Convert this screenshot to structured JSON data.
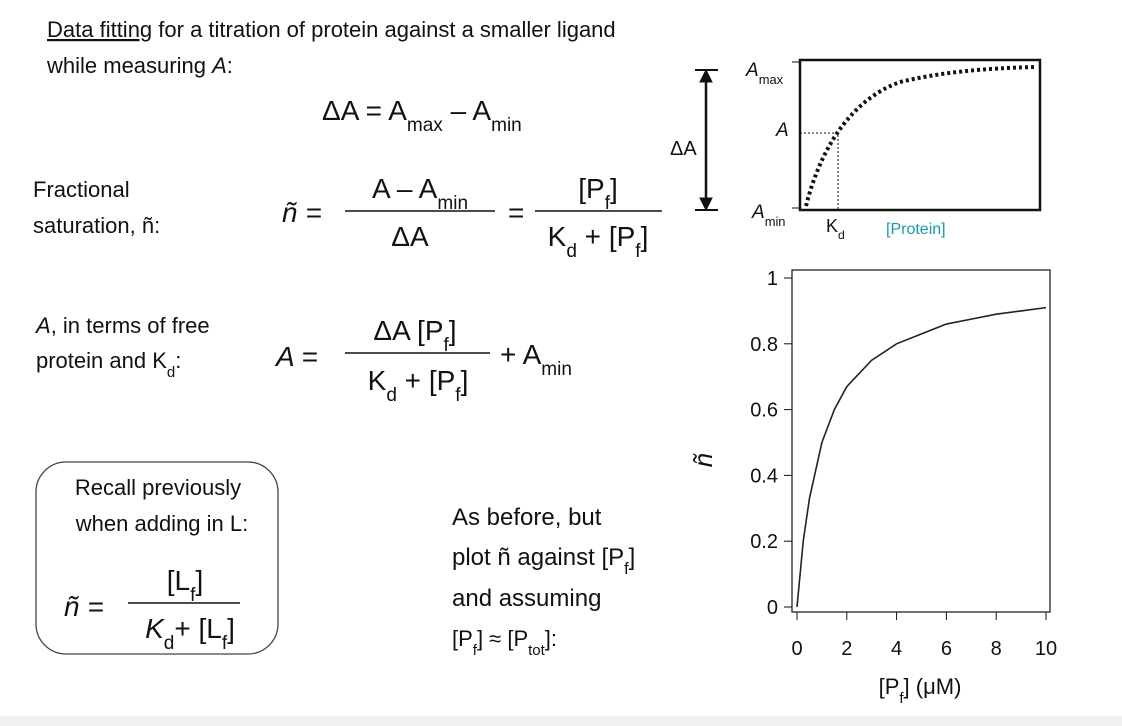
{
  "header": {
    "title_link": "Data fitting",
    "title_rest": " for a titration of protein against a smaller ligand",
    "line2": "while measuring ",
    "line2_var": "A",
    "line2_end": ":"
  },
  "eq_delta": [
    "ΔA = A",
    "max",
    " – A",
    "min"
  ],
  "saturation": {
    "label": [
      "Fractional",
      "saturation, ñ:"
    ],
    "lhs": "ñ =",
    "num1": [
      "A – A",
      "min"
    ],
    "den1": "ΔA",
    "eq": "=",
    "num2": [
      "[P",
      "f",
      "]"
    ],
    "den2": [
      "K",
      "d",
      " + [P",
      "f",
      "]"
    ]
  },
  "schematic": {
    "delta": "ΔA",
    "amax": [
      "A",
      "max"
    ],
    "a": "A",
    "amin": [
      "A",
      "min"
    ],
    "kd": [
      "K",
      "d"
    ],
    "x_label": "[Protein]"
  },
  "free": {
    "label": [
      "A",
      ", in terms of free",
      "protein and K",
      "d",
      ":"
    ],
    "lhs": "A =",
    "num": [
      "ΔA [P",
      "f",
      "]"
    ],
    "den": [
      "K",
      "d",
      " + [P",
      "f",
      "]"
    ],
    "tail": [
      "+ A",
      "min"
    ]
  },
  "recall": {
    "lines": [
      "Recall previously",
      "when adding in L:"
    ],
    "lhs": "ñ =",
    "num": [
      "[L",
      "f",
      "]"
    ],
    "den": [
      "K",
      "d",
      "+ [L",
      "f",
      "]"
    ]
  },
  "note": {
    "lines": [
      [
        "As before, but"
      ],
      [
        "plot ñ against [P",
        "f",
        "]"
      ],
      [
        "and assuming"
      ],
      [
        "[P",
        "f",
        "] ≈ [P",
        "tot",
        "]:"
      ]
    ]
  },
  "chart_data": {
    "type": "line",
    "x_label": [
      "[P",
      "f",
      "] (μM)"
    ],
    "y_label": "ñ",
    "x": [
      0,
      0.25,
      0.5,
      1,
      1.5,
      2,
      3,
      4,
      5,
      6,
      7,
      8,
      9,
      10
    ],
    "values": [
      0,
      0.2,
      0.33,
      0.5,
      0.6,
      0.67,
      0.75,
      0.8,
      0.83,
      0.86,
      0.875,
      0.89,
      0.9,
      0.91
    ],
    "color": "#222222",
    "xlim": [
      0,
      10
    ],
    "ylim": [
      0,
      1
    ],
    "xticks": [
      0,
      2,
      4,
      6,
      8,
      10
    ],
    "yticks": [
      0,
      0.2,
      0.4,
      0.6,
      0.8,
      1
    ]
  }
}
